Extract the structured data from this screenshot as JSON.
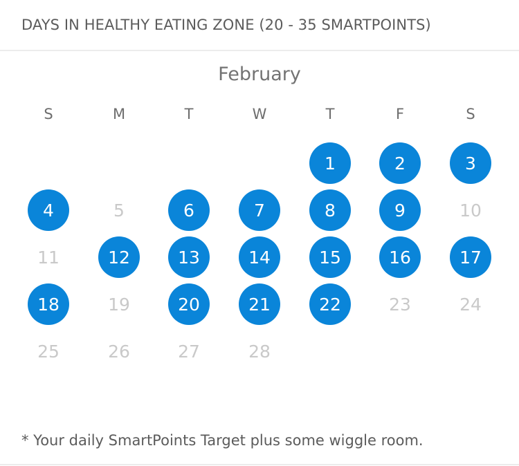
{
  "header": {
    "title": "DAYS IN HEALTHY EATING ZONE  (20 - 35 SMARTPOINTS)"
  },
  "calendar": {
    "month": "February",
    "weekdays": [
      "S",
      "M",
      "T",
      "W",
      "T",
      "F",
      "S"
    ],
    "first_weekday_index": 4,
    "days": [
      {
        "label": "1",
        "in_zone": true
      },
      {
        "label": "2",
        "in_zone": true
      },
      {
        "label": "3",
        "in_zone": true
      },
      {
        "label": "4",
        "in_zone": true
      },
      {
        "label": "5",
        "in_zone": false
      },
      {
        "label": "6",
        "in_zone": true
      },
      {
        "label": "7",
        "in_zone": true
      },
      {
        "label": "8",
        "in_zone": true
      },
      {
        "label": "9",
        "in_zone": true
      },
      {
        "label": "10",
        "in_zone": false
      },
      {
        "label": "11",
        "in_zone": false
      },
      {
        "label": "12",
        "in_zone": true
      },
      {
        "label": "13",
        "in_zone": true
      },
      {
        "label": "14",
        "in_zone": true
      },
      {
        "label": "15",
        "in_zone": true
      },
      {
        "label": "16",
        "in_zone": true
      },
      {
        "label": "17",
        "in_zone": true
      },
      {
        "label": "18",
        "in_zone": true
      },
      {
        "label": "19",
        "in_zone": false
      },
      {
        "label": "20",
        "in_zone": true
      },
      {
        "label": "21",
        "in_zone": true
      },
      {
        "label": "22",
        "in_zone": true
      },
      {
        "label": "23",
        "in_zone": false
      },
      {
        "label": "24",
        "in_zone": false
      },
      {
        "label": "25",
        "in_zone": false
      },
      {
        "label": "26",
        "in_zone": false
      },
      {
        "label": "27",
        "in_zone": false
      },
      {
        "label": "28",
        "in_zone": false
      }
    ]
  },
  "footnote": "* Your daily SmartPoints Target plus some wiggle room.",
  "colors": {
    "zone_fill": "#0a85d9",
    "zone_text": "#ffffff",
    "inactive_text": "#c9c9c9"
  }
}
